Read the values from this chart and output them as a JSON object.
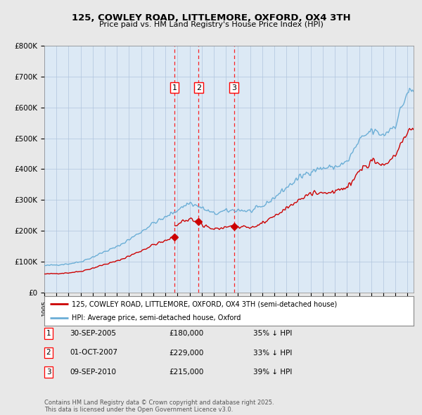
{
  "title": "125, COWLEY ROAD, LITTLEMORE, OXFORD, OX4 3TH",
  "subtitle": "Price paid vs. HM Land Registry's House Price Index (HPI)",
  "hpi_color": "#6baed6",
  "price_color": "#cc0000",
  "background_color": "#e8e8e8",
  "plot_bg_color": "#dce9f5",
  "legend_red": "125, COWLEY ROAD, LITTLEMORE, OXFORD, OX4 3TH (semi-detached house)",
  "legend_blue": "HPI: Average price, semi-detached house, Oxford",
  "table_data": [
    [
      "1",
      "30-SEP-2005",
      "£180,000",
      "35% ↓ HPI"
    ],
    [
      "2",
      "01-OCT-2007",
      "£229,000",
      "33% ↓ HPI"
    ],
    [
      "3",
      "09-SEP-2010",
      "£215,000",
      "39% ↓ HPI"
    ]
  ],
  "footnote": "Contains HM Land Registry data © Crown copyright and database right 2025.\nThis data is licensed under the Open Government Licence v3.0.",
  "ylim": [
    0,
    800000
  ],
  "yticks": [
    0,
    100000,
    200000,
    300000,
    400000,
    500000,
    600000,
    700000,
    800000
  ],
  "ytick_labels": [
    "£0",
    "£100K",
    "£200K",
    "£300K",
    "£400K",
    "£500K",
    "£600K",
    "£700K",
    "£800K"
  ],
  "sale_dates": [
    2005.75,
    2007.75,
    2010.67
  ],
  "sale_prices": [
    180000,
    229000,
    215000
  ],
  "transaction_labels": [
    "1",
    "2",
    "3"
  ],
  "xlim_left": 1995.0,
  "xlim_right": 2025.5
}
